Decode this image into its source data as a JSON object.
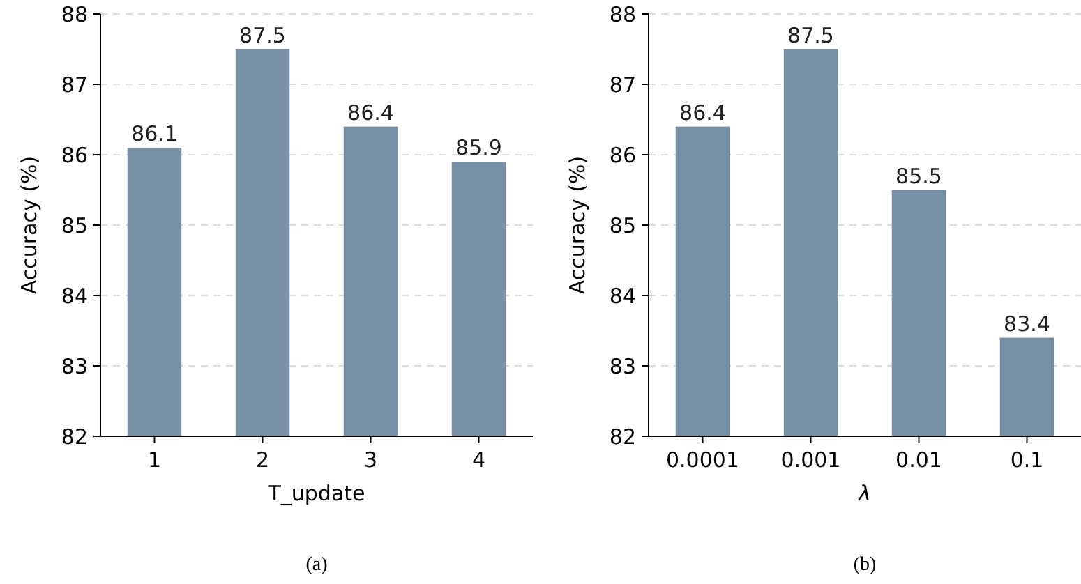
{
  "chart_data": [
    {
      "type": "bar",
      "categories": [
        "1",
        "2",
        "3",
        "4"
      ],
      "values": [
        86.1,
        87.5,
        86.4,
        85.9
      ],
      "color": "#7790a6",
      "ylim": [
        82,
        88
      ],
      "yticks": [
        82,
        83,
        84,
        85,
        86,
        87,
        88
      ],
      "xlabel": "T_update",
      "ylabel": "Accuracy (%)",
      "data_labels": true,
      "grid": "y",
      "annotations": [
        "(a)"
      ]
    },
    {
      "type": "bar",
      "categories": [
        "0.0001",
        "0.001",
        "0.01",
        "0.1"
      ],
      "values": [
        86.4,
        87.5,
        85.5,
        83.4
      ],
      "color": "#7790a6",
      "ylim": [
        82,
        88
      ],
      "yticks": [
        82,
        83,
        84,
        85,
        86,
        87,
        88
      ],
      "xlabel": "λ",
      "ylabel": "Accuracy (%)",
      "data_labels": true,
      "grid": "y",
      "annotations": [
        "(b)"
      ]
    }
  ]
}
